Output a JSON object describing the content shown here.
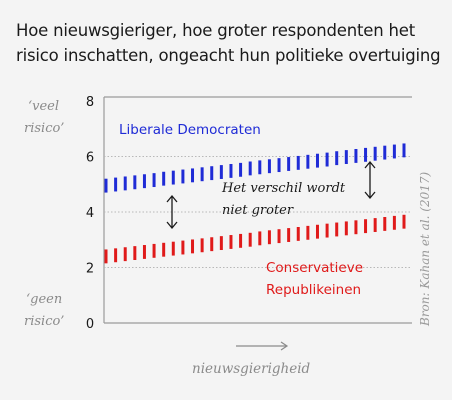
{
  "title_lines": [
    "Hoe nieuwsgieriger, hoe groter respondenten het",
    "risico inschatten, ongeacht hun politieke overtuiging"
  ],
  "source": "Bron: Kahan et al. (2017)",
  "y_top_label": [
    "‘veel",
    "risico’"
  ],
  "y_bottom_label": [
    "‘geen",
    "risico’"
  ],
  "x_axis_label": "nieuwsgierigheid",
  "annotation": [
    "Het verschil wordt",
    "niet groter"
  ],
  "colors": {
    "democrats": "#1f2bd6",
    "republicans": "#e01a1a",
    "text": "#1a1a1a",
    "muted": "#8a8a8a",
    "grid": "#b8b8b8"
  },
  "chart_data": {
    "type": "line",
    "title": "Hoe nieuwsgieriger, hoe groter respondenten het risico inschatten, ongeacht hun politieke overtuiging",
    "xlabel": "nieuwsgierigheid",
    "ylabel": "",
    "ylim": [
      0,
      8
    ],
    "yticks": [
      0,
      2,
      4,
      6,
      8
    ],
    "grid": "dotted horizontal at 2, 4, 6",
    "x": [
      0,
      1,
      2,
      3,
      4,
      5,
      6,
      7,
      8,
      9,
      10,
      11,
      12,
      13,
      14,
      15,
      16,
      17,
      18,
      19,
      20,
      21,
      22,
      23,
      24,
      25,
      26,
      27,
      28,
      29,
      30,
      31
    ],
    "series": [
      {
        "name": "Liberale Democraten",
        "color": "#1f2bd6",
        "values": [
          4.95,
          4.99,
          5.03,
          5.07,
          5.11,
          5.15,
          5.2,
          5.24,
          5.28,
          5.32,
          5.36,
          5.4,
          5.44,
          5.48,
          5.52,
          5.57,
          5.61,
          5.65,
          5.69,
          5.73,
          5.77,
          5.81,
          5.85,
          5.89,
          5.94,
          5.98,
          6.02,
          6.06,
          6.1,
          6.14,
          6.18,
          6.22
        ],
        "band": 0.5
      },
      {
        "name": "Conservatieve Republikeinen",
        "color": "#e01a1a",
        "values": [
          2.4,
          2.44,
          2.48,
          2.52,
          2.56,
          2.6,
          2.64,
          2.68,
          2.72,
          2.76,
          2.8,
          2.84,
          2.88,
          2.92,
          2.96,
          3.0,
          3.05,
          3.09,
          3.13,
          3.17,
          3.21,
          3.25,
          3.29,
          3.33,
          3.37,
          3.41,
          3.45,
          3.49,
          3.53,
          3.57,
          3.61,
          3.65
        ],
        "band": 0.5
      }
    ],
    "series_labels": [
      [
        "Liberale Democraten"
      ],
      [
        "Conservatieve",
        "Republikeinen"
      ]
    ]
  }
}
